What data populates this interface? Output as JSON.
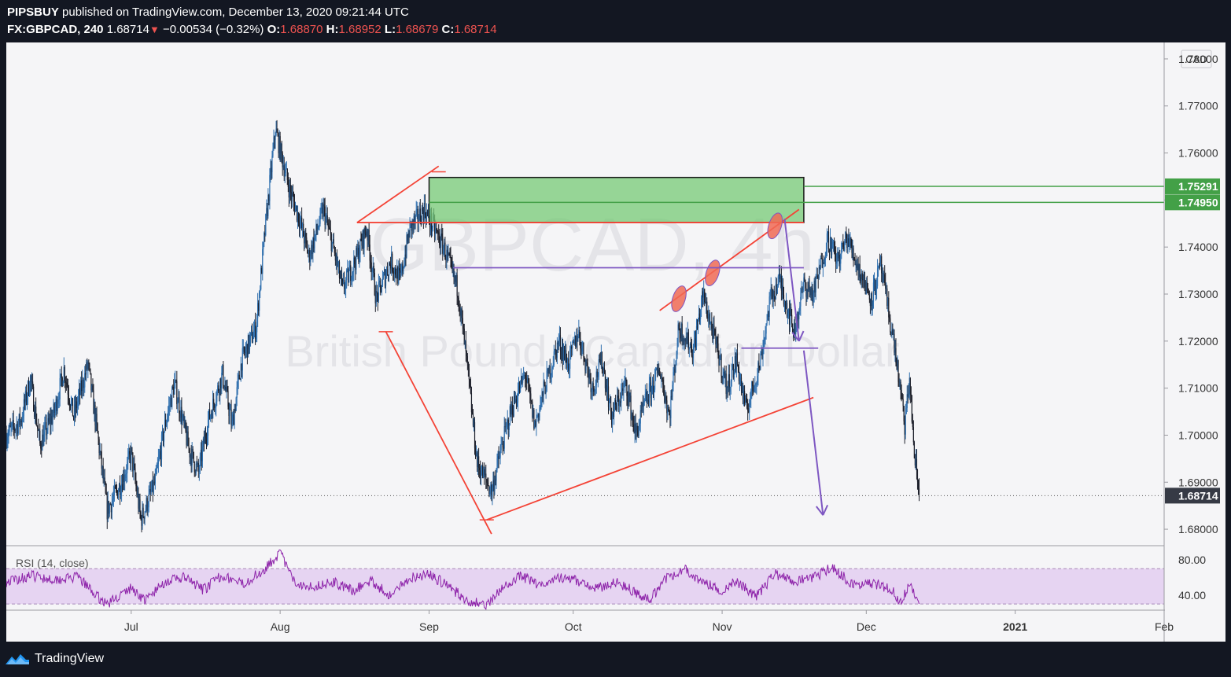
{
  "header": {
    "publisher": "PIPSBUY",
    "published_text": "published on TradingView.com, December 13, 2020 09:21:44 UTC",
    "symbol": "FX:GBPCAD, 240",
    "last": "1.68714",
    "change": "−0.00534 (−0.32%)",
    "o_label": "O:",
    "o": "1.68870",
    "h_label": "H:",
    "h": "1.68952",
    "l_label": "L:",
    "l": "1.68679",
    "c_label": "C:",
    "c": "1.68714"
  },
  "footer": {
    "brand": "TradingView",
    "logo_icon": "tradingview-logo-icon"
  },
  "colors": {
    "background": "#f5f5f7",
    "frame": "#131722",
    "candle_up": "#2f6fae",
    "candle_down": "#1c1f2a",
    "trendline": "#f44336",
    "zone_fill": "#76c976",
    "zone_line": "#43a047",
    "purple": "#7e57c2",
    "rsi": "#8e24aa",
    "rsi_band": "#e6d4f2"
  },
  "chart_data": {
    "type": "candlestick",
    "watermark_symbol": "GBPCAD, 4h",
    "watermark_name": "British Pound / Canadian Dollar",
    "currency_label": "CAD",
    "ylim": [
      1.6765,
      1.7835
    ],
    "yticks": [
      "1.78000",
      "1.77000",
      "1.76000",
      "1.75000",
      "1.74000",
      "1.73000",
      "1.72000",
      "1.71000",
      "1.70000",
      "1.69000",
      "1.68000"
    ],
    "xlim": [
      "2020-06-05",
      "2021-02-01"
    ],
    "xticks": [
      {
        "label": "Jul",
        "date": "2020-07-01"
      },
      {
        "label": "Aug",
        "date": "2020-08-01"
      },
      {
        "label": "Sep",
        "date": "2020-09-01"
      },
      {
        "label": "Oct",
        "date": "2020-10-01"
      },
      {
        "label": "Nov",
        "date": "2020-11-01"
      },
      {
        "label": "Dec",
        "date": "2020-12-01"
      },
      {
        "label": "2021",
        "date": "2021-01-01"
      },
      {
        "label": "Feb",
        "date": "2021-02-01"
      }
    ],
    "close_path": [
      [
        "2020-06-05",
        1.7
      ],
      [
        "2020-06-08",
        1.703
      ],
      [
        "2020-06-10",
        1.712
      ],
      [
        "2020-06-12",
        1.698
      ],
      [
        "2020-06-15",
        1.705
      ],
      [
        "2020-06-17",
        1.714
      ],
      [
        "2020-06-19",
        1.704
      ],
      [
        "2020-06-22",
        1.715
      ],
      [
        "2020-06-24",
        1.7
      ],
      [
        "2020-06-26",
        1.684
      ],
      [
        "2020-06-29",
        1.69
      ],
      [
        "2020-07-01",
        1.696
      ],
      [
        "2020-07-03",
        1.682
      ],
      [
        "2020-07-06",
        1.69
      ],
      [
        "2020-07-08",
        1.702
      ],
      [
        "2020-07-10",
        1.711
      ],
      [
        "2020-07-13",
        1.697
      ],
      [
        "2020-07-15",
        1.692
      ],
      [
        "2020-07-17",
        1.703
      ],
      [
        "2020-07-20",
        1.713
      ],
      [
        "2020-07-22",
        1.702
      ],
      [
        "2020-07-24",
        1.716
      ],
      [
        "2020-07-27",
        1.723
      ],
      [
        "2020-07-29",
        1.745
      ],
      [
        "2020-07-31",
        1.765
      ],
      [
        "2020-08-03",
        1.752
      ],
      [
        "2020-08-05",
        1.746
      ],
      [
        "2020-08-07",
        1.738
      ],
      [
        "2020-08-10",
        1.748
      ],
      [
        "2020-08-12",
        1.74
      ],
      [
        "2020-08-14",
        1.731
      ],
      [
        "2020-08-17",
        1.738
      ],
      [
        "2020-08-19",
        1.744
      ],
      [
        "2020-08-21",
        1.729
      ],
      [
        "2020-08-24",
        1.737
      ],
      [
        "2020-08-26",
        1.733
      ],
      [
        "2020-08-28",
        1.744
      ],
      [
        "2020-08-31",
        1.748
      ],
      [
        "2020-09-02",
        1.744
      ],
      [
        "2020-09-04",
        1.74
      ],
      [
        "2020-09-07",
        1.731
      ],
      [
        "2020-09-09",
        1.714
      ],
      [
        "2020-09-11",
        1.694
      ],
      [
        "2020-09-14",
        1.688
      ],
      [
        "2020-09-16",
        1.697
      ],
      [
        "2020-09-18",
        1.705
      ],
      [
        "2020-09-21",
        1.713
      ],
      [
        "2020-09-23",
        1.702
      ],
      [
        "2020-09-25",
        1.71
      ],
      [
        "2020-09-28",
        1.72
      ],
      [
        "2020-09-30",
        1.715
      ],
      [
        "2020-10-02",
        1.722
      ],
      [
        "2020-10-05",
        1.71
      ],
      [
        "2020-10-07",
        1.716
      ],
      [
        "2020-10-09",
        1.704
      ],
      [
        "2020-10-12",
        1.711
      ],
      [
        "2020-10-14",
        1.7
      ],
      [
        "2020-10-16",
        1.707
      ],
      [
        "2020-10-19",
        1.714
      ],
      [
        "2020-10-21",
        1.704
      ],
      [
        "2020-10-23",
        1.723
      ],
      [
        "2020-10-26",
        1.718
      ],
      [
        "2020-10-28",
        1.73
      ],
      [
        "2020-10-30",
        1.722
      ],
      [
        "2020-11-02",
        1.71
      ],
      [
        "2020-11-04",
        1.716
      ],
      [
        "2020-11-06",
        1.705
      ],
      [
        "2020-11-09",
        1.716
      ],
      [
        "2020-11-11",
        1.729
      ],
      [
        "2020-11-13",
        1.733
      ],
      [
        "2020-11-16",
        1.722
      ],
      [
        "2020-11-18",
        1.732
      ],
      [
        "2020-11-20",
        1.73
      ],
      [
        "2020-11-23",
        1.742
      ],
      [
        "2020-11-25",
        1.737
      ],
      [
        "2020-11-27",
        1.742
      ],
      [
        "2020-11-30",
        1.734
      ],
      [
        "2020-12-02",
        1.729
      ],
      [
        "2020-12-04",
        1.736
      ],
      [
        "2020-12-07",
        1.718
      ],
      [
        "2020-12-09",
        1.702
      ],
      [
        "2020-12-10",
        1.712
      ],
      [
        "2020-12-11",
        1.696
      ],
      [
        "2020-12-12",
        1.6871
      ]
    ],
    "last_price": {
      "value": 1.68714,
      "label": "1.68714"
    },
    "zone": {
      "x0": "2020-09-01",
      "x1": "2020-11-18",
      "y0": 1.7452,
      "y1": 1.7548
    },
    "horizontal_levels": [
      {
        "value": 1.75291,
        "label": "1.75291",
        "from": "2020-11-18"
      },
      {
        "value": 1.7495,
        "label": "1.74950",
        "from": "2020-09-01"
      }
    ],
    "trendlines": [
      {
        "from": [
          "2020-08-17",
          1.7452
        ],
        "to": [
          "2020-09-03",
          1.7572
        ]
      },
      {
        "from": [
          "2020-08-17",
          1.7452
        ],
        "to": [
          "2020-11-18",
          1.7452
        ]
      },
      {
        "from": [
          "2020-08-23",
          1.722
        ],
        "to": [
          "2020-09-14",
          1.679
        ]
      },
      {
        "from": [
          "2020-09-13",
          1.682
        ],
        "to": [
          "2020-11-20",
          1.708
        ]
      },
      {
        "from": [
          "2020-10-19",
          1.7265
        ],
        "to": [
          "2020-11-17",
          1.748
        ]
      }
    ],
    "circles": [
      {
        "date": "2020-10-23",
        "value": 1.729
      },
      {
        "date": "2020-10-30",
        "value": 1.7345
      },
      {
        "date": "2020-11-12",
        "value": 1.7445
      }
    ],
    "purple_lines": [
      {
        "from": [
          "2020-09-06",
          1.7356
        ],
        "to": [
          "2020-11-18",
          1.7356
        ]
      },
      {
        "from": [
          "2020-11-05",
          1.7185
        ],
        "to": [
          "2020-11-21",
          1.7185
        ]
      }
    ],
    "purple_arrows": [
      {
        "from": [
          "2020-11-14",
          1.746
        ],
        "to": [
          "2020-11-17",
          1.72
        ]
      },
      {
        "from": [
          "2020-11-18",
          1.718
        ],
        "to": [
          "2020-11-22",
          1.683
        ]
      }
    ],
    "rsi": {
      "label": "RSI (14, close)",
      "ylim": [
        23,
        96
      ],
      "yticks": [
        "80.00",
        "40.00"
      ],
      "band": [
        30,
        70
      ],
      "path": [
        [
          "2020-06-05",
          55
        ],
        [
          "2020-06-10",
          62
        ],
        [
          "2020-06-15",
          58
        ],
        [
          "2020-06-20",
          60
        ],
        [
          "2020-06-24",
          38
        ],
        [
          "2020-06-26",
          30
        ],
        [
          "2020-07-01",
          48
        ],
        [
          "2020-07-04",
          34
        ],
        [
          "2020-07-08",
          55
        ],
        [
          "2020-07-12",
          60
        ],
        [
          "2020-07-16",
          46
        ],
        [
          "2020-07-20",
          63
        ],
        [
          "2020-07-24",
          52
        ],
        [
          "2020-07-28",
          66
        ],
        [
          "2020-07-30",
          77
        ],
        [
          "2020-08-01",
          88
        ],
        [
          "2020-08-04",
          54
        ],
        [
          "2020-08-08",
          50
        ],
        [
          "2020-08-12",
          55
        ],
        [
          "2020-08-16",
          45
        ],
        [
          "2020-08-20",
          56
        ],
        [
          "2020-08-24",
          39
        ],
        [
          "2020-08-28",
          60
        ],
        [
          "2020-09-01",
          64
        ],
        [
          "2020-09-05",
          50
        ],
        [
          "2020-09-09",
          34
        ],
        [
          "2020-09-13",
          28
        ],
        [
          "2020-09-16",
          46
        ],
        [
          "2020-09-20",
          62
        ],
        [
          "2020-09-24",
          52
        ],
        [
          "2020-09-28",
          60
        ],
        [
          "2020-10-02",
          56
        ],
        [
          "2020-10-06",
          48
        ],
        [
          "2020-10-10",
          55
        ],
        [
          "2020-10-14",
          43
        ],
        [
          "2020-10-17",
          34
        ],
        [
          "2020-10-20",
          58
        ],
        [
          "2020-10-24",
          70
        ],
        [
          "2020-10-28",
          54
        ],
        [
          "2020-11-01",
          45
        ],
        [
          "2020-11-04",
          56
        ],
        [
          "2020-11-08",
          38
        ],
        [
          "2020-11-12",
          64
        ],
        [
          "2020-11-16",
          55
        ],
        [
          "2020-11-20",
          60
        ],
        [
          "2020-11-24",
          72
        ],
        [
          "2020-11-28",
          52
        ],
        [
          "2020-12-02",
          54
        ],
        [
          "2020-12-06",
          48
        ],
        [
          "2020-12-08",
          33
        ],
        [
          "2020-12-10",
          50
        ],
        [
          "2020-12-12",
          36
        ]
      ]
    }
  }
}
